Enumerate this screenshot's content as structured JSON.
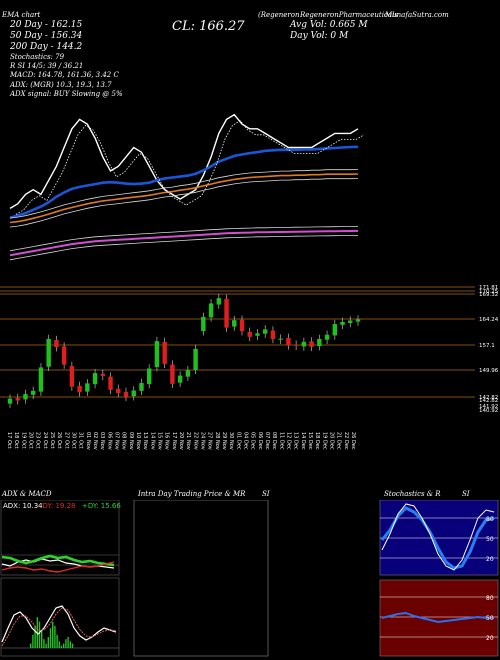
{
  "header": {
    "line1_left": "MunafaSutra.com",
    "ema_label": "EMA chart",
    "symbol_tag": "(Regeneron",
    "company": "RegeneronPharmaceuticals",
    "price_label": "CL: 166.27",
    "avg_vol": "Avg Vol: 0.665 M",
    "day_vol": "Day Vol: 0  M",
    "ema20": "20 Day - 162.15",
    "ema50": "50 Day - 156.34",
    "ema200": "200 Day - 144.2",
    "stochastics": "Stochastics: 79",
    "rsi_line": "R          SI 14/5: 39 / 36.21",
    "macd_line": "MACD: 164.78,  161.36,  3.42  C",
    "adx_line": "ADX:                   (MGR) 10.3,  19.3,  13.7",
    "adx_signal": "ADX  signal:                   BUY Slowing @ 5%"
  },
  "price_levels": [
    "171.81",
    "170.25",
    "169.32",
    "164.24",
    "157.1",
    "149.96",
    "142.82",
    "142.82",
    "141.92",
    "140.92"
  ],
  "date_labels": [
    "17 Oct",
    "18 Oct",
    "19 Oct",
    "20 Oct",
    "23 Oct",
    "24 Oct",
    "25 Oct",
    "26 Oct",
    "27 Oct",
    "30 Oct",
    "31 Oct",
    "01 Nov",
    "02 Nov",
    "03 Nov",
    "06 Nov",
    "07 Nov",
    "08 Nov",
    "09 Nov",
    "10 Nov",
    "13 Nov",
    "14 Nov",
    "15 Nov",
    "16 Nov",
    "17 Nov",
    "20 Nov",
    "21 Nov",
    "22 Nov",
    "24 Nov",
    "27 Nov",
    "28 Nov",
    "29 Nov",
    "30 Nov",
    "01 Dec",
    "04 Dec",
    "05 Dec",
    "06 Dec",
    "07 Dec",
    "08 Dec",
    "11 Dec",
    "12 Dec",
    "13 Dec",
    "14 Dec",
    "15 Dec",
    "18 Dec",
    "19 Dec",
    "20 Dec",
    "21 Dec",
    "22 Dec",
    "26 Dec"
  ],
  "panels": {
    "adx_title": "ADX  & MACD",
    "adx_readout_adx": "ADX: 10.34",
    "adx_readout_minus": "-DY: 19.28",
    "adx_readout_plus": "+DY: 15.66",
    "intraday_title": "Intra  Day Trading Price  & MR",
    "intraday_si": "SI",
    "stoch_title": "Stochastics & R",
    "stoch_si": "SI",
    "stoch_levels": [
      "80",
      "50",
      "20"
    ],
    "rsi_levels": [
      "80",
      "50",
      "20"
    ]
  },
  "colors": {
    "ema_blue": "#1a57d6",
    "ema_orange": "#e07a1a",
    "ema_magenta": "#d24fd2",
    "up": "#1ec21e",
    "down": "#e01e1e",
    "level_line": "#b06a10",
    "stoch_bg": "#08007a",
    "rsi_bg": "#6a0000"
  },
  "chart_data": {
    "type": "line",
    "title": "",
    "candles": {
      "open": [
        142.6,
        144.2,
        143.8,
        145.1,
        146.0,
        153.0,
        160.5,
        158.7,
        153.2,
        147.6,
        146.0,
        148.1,
        151.0,
        150.2,
        146.8,
        145.9,
        144.7,
        146.2,
        148.1,
        152.9,
        160.0,
        153.6,
        148.5,
        150.2,
        152.1,
        163.0,
        166.9,
        170.5,
        172.1,
        164.3,
        166.2,
        162.8,
        161.7,
        162.3,
        163.2,
        160.6,
        161.1,
        159.2,
        158.7,
        160.1,
        158.8,
        160.6,
        161.8,
        164.8,
        165.3,
        165.7
      ],
      "close": [
        144.0,
        143.5,
        145.3,
        146.2,
        152.8,
        160.8,
        158.5,
        153.6,
        147.4,
        145.8,
        148.3,
        151.2,
        150.4,
        146.5,
        145.6,
        144.5,
        146.3,
        148.4,
        152.5,
        160.2,
        153.8,
        148.2,
        150.5,
        152.0,
        158.0,
        167.0,
        170.8,
        172.3,
        164.0,
        166.1,
        163.0,
        161.4,
        162.4,
        163.5,
        160.8,
        160.9,
        159.0,
        158.9,
        160.0,
        158.6,
        160.8,
        162.0,
        165.0,
        165.6,
        166.0,
        166.3
      ]
    },
    "overlay_series": [
      {
        "values": [
          149,
          150,
          152,
          153,
          152,
          155,
          158,
          162,
          166,
          168,
          167,
          164,
          160,
          157,
          158,
          160,
          162,
          161,
          158,
          155,
          153,
          152,
          151,
          152,
          153,
          156,
          160,
          165,
          168,
          169,
          167,
          166,
          166,
          165,
          164,
          163,
          162,
          162,
          162,
          162,
          163,
          164,
          165,
          165,
          165,
          166
        ]
      },
      {
        "values": [
          147,
          147.5,
          148,
          148.7,
          149.4,
          150.3,
          151.5,
          152.4,
          153.2,
          153.6,
          153.9,
          154.2,
          154.5,
          154.6,
          154.5,
          154.3,
          154.2,
          154.3,
          154.5,
          155.0,
          155.4,
          155.6,
          155.8,
          156.0,
          156.4,
          157.1,
          158.0,
          159.0,
          159.6,
          160.2,
          160.5,
          160.8,
          161.0,
          161.3,
          161.4,
          161.5,
          161.5,
          161.5,
          161.6,
          161.6,
          161.7,
          161.8,
          161.9,
          162.0,
          162.1,
          162.15
        ]
      },
      {
        "values": [
          146,
          146.2,
          146.5,
          146.9,
          147.3,
          147.8,
          148.3,
          148.8,
          149.2,
          149.6,
          150.0,
          150.3,
          150.6,
          150.8,
          151.0,
          151.2,
          151.4,
          151.6,
          151.8,
          152.1,
          152.4,
          152.6,
          152.9,
          153.1,
          153.4,
          153.8,
          154.2,
          154.6,
          154.9,
          155.2,
          155.4,
          155.6,
          155.7,
          155.8,
          155.9,
          156.0,
          156.0,
          156.1,
          156.1,
          156.2,
          156.2,
          156.3,
          156.3,
          156.3,
          156.3,
          156.34
        ]
      },
      {
        "values": [
          139.0,
          139.3,
          139.6,
          139.9,
          140.2,
          140.5,
          140.8,
          141.1,
          141.4,
          141.6,
          141.8,
          142.0,
          142.1,
          142.2,
          142.3,
          142.4,
          142.5,
          142.6,
          142.7,
          142.8,
          142.9,
          143.0,
          143.1,
          143.2,
          143.3,
          143.4,
          143.5,
          143.6,
          143.7,
          143.75,
          143.8,
          143.85,
          143.9,
          143.92,
          143.95,
          143.98,
          144.0,
          144.03,
          144.06,
          144.08,
          144.1,
          144.12,
          144.14,
          144.16,
          144.18,
          144.2
        ]
      }
    ],
    "ylim": [
      138,
      176
    ]
  }
}
